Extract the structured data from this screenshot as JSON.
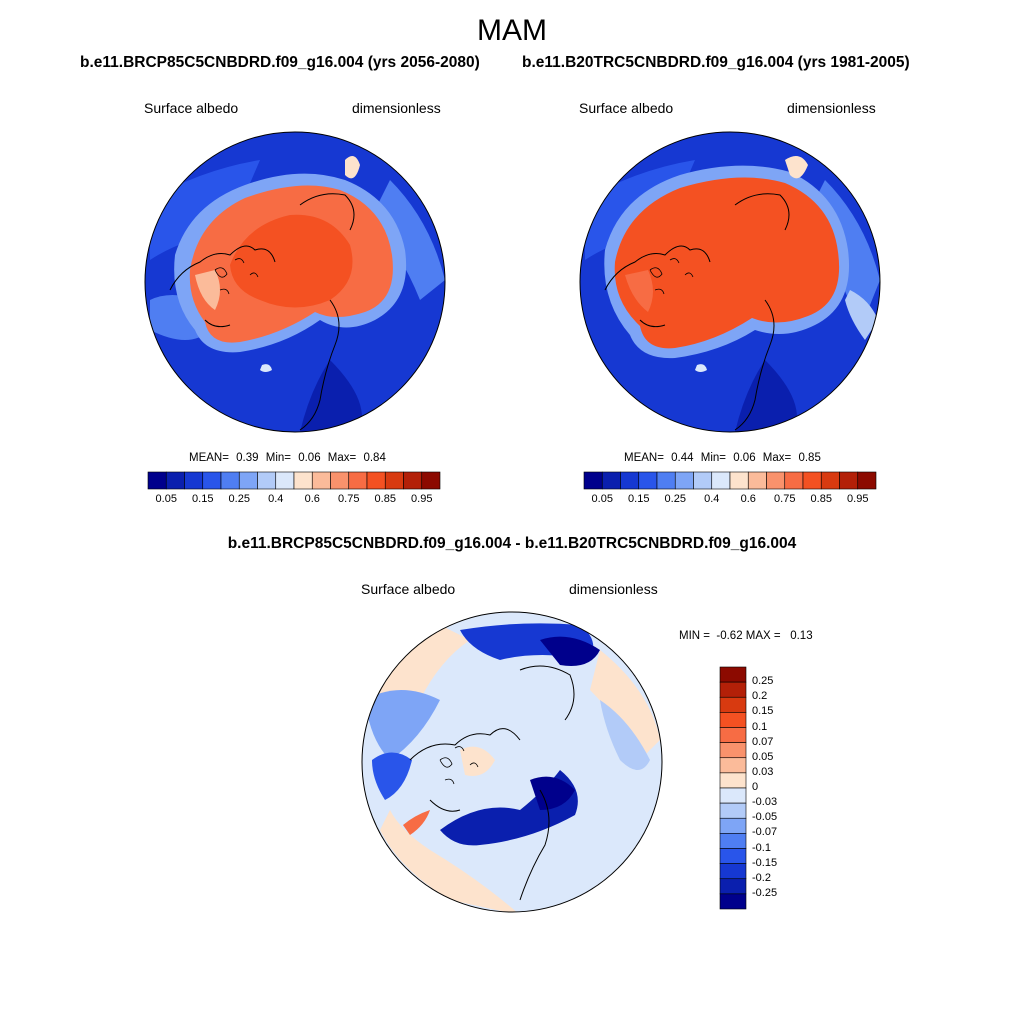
{
  "season": "MAM",
  "panels": [
    {
      "title": "b.e11.BRCP85C5CNBDRD.f09_g16.004 (yrs 2056-2080)",
      "variable": "Surface albedo",
      "units": "dimensionless",
      "stats": {
        "mean_label": "MEAN=",
        "mean": "0.39",
        "min_label": "Min=",
        "min": "0.06",
        "max_label": "Max=",
        "max": "0.84"
      }
    },
    {
      "title": "b.e11.B20TRC5CNBDRD.f09_g16.004 (yrs 1981-2005)",
      "variable": "Surface albedo",
      "units": "dimensionless",
      "stats": {
        "mean_label": "MEAN=",
        "mean": "0.44",
        "min_label": "Min=",
        "min": "0.06",
        "max_label": "Max=",
        "max": "0.85"
      }
    }
  ],
  "diff_panel": {
    "title": "b.e11.BRCP85C5CNBDRD.f09_g16.004 - b.e11.B20TRC5CNBDRD.f09_g16.004",
    "variable": "Surface albedo",
    "units": "dimensionless",
    "minmax_text": "MIN =  -0.62 MAX =   0.13"
  },
  "colorbar_abs": {
    "colors": [
      "#00008c",
      "#0a1fae",
      "#1638d2",
      "#2955ea",
      "#4f7ef2",
      "#7ea5f6",
      "#b2cbf8",
      "#dbe8fb",
      "#fde3cd",
      "#fbbb9a",
      "#f9926c",
      "#f76c44",
      "#f45122",
      "#d83a10",
      "#b32008",
      "#8c0a00"
    ],
    "tick_labels": [
      "0.05",
      "0.15",
      "0.25",
      "0.4",
      "0.6",
      "0.75",
      "0.85",
      "0.95"
    ]
  },
  "colorbar_diff": {
    "colors": [
      "#8c0a00",
      "#b32008",
      "#d83a10",
      "#f45122",
      "#f76c44",
      "#f9926c",
      "#fbbb9a",
      "#fde3cd",
      "#dbe8fb",
      "#b2cbf8",
      "#7ea5f6",
      "#4f7ef2",
      "#2955ea",
      "#1638d2",
      "#0a1fae",
      "#00008c"
    ],
    "tick_labels": [
      "0.25",
      "0.2",
      "0.15",
      "0.1",
      "0.07",
      "0.05",
      "0.03",
      "0",
      "-0.03",
      "-0.05",
      "-0.07",
      "-0.1",
      "-0.15",
      "-0.2",
      "-0.25"
    ]
  }
}
